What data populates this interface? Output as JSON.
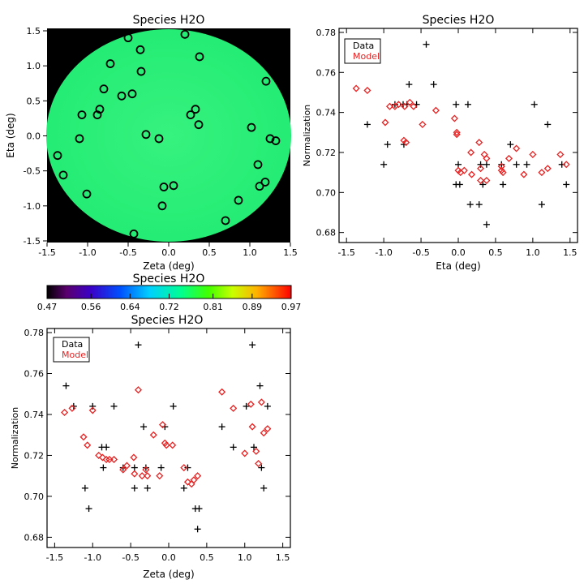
{
  "chart_data": [
    {
      "type": "scatter",
      "title": "Species H2O",
      "xlabel": "Zeta (deg)",
      "ylabel": "Eta (deg)",
      "xlim": [
        -1.5,
        1.5
      ],
      "ylim": [
        -1.5,
        1.5
      ],
      "xticks": [
        "-1.5",
        "-1.0",
        "-0.5",
        "0.0",
        "0.5",
        "1.0",
        "1.5"
      ],
      "yticks": [
        "-1.5",
        "-1.0",
        "-0.5",
        "0.0",
        "0.5",
        "1.0",
        "1.5"
      ],
      "background_color": "#000000",
      "field_color": "#2cf07a",
      "field_value": 0.73,
      "marker": "circle",
      "points": [
        [
          -0.5,
          1.4
        ],
        [
          0.2,
          1.45
        ],
        [
          -0.35,
          1.23
        ],
        [
          0.38,
          1.13
        ],
        [
          -0.72,
          1.03
        ],
        [
          -0.34,
          0.92
        ],
        [
          1.2,
          0.78
        ],
        [
          -0.8,
          0.67
        ],
        [
          -0.58,
          0.57
        ],
        [
          -0.45,
          0.6
        ],
        [
          -0.85,
          0.38
        ],
        [
          0.33,
          0.38
        ],
        [
          -1.07,
          0.3
        ],
        [
          -0.88,
          0.3
        ],
        [
          0.27,
          0.3
        ],
        [
          0.37,
          0.16
        ],
        [
          1.02,
          0.12
        ],
        [
          -0.28,
          0.02
        ],
        [
          -0.12,
          -0.04
        ],
        [
          -1.1,
          -0.04
        ],
        [
          1.25,
          -0.04
        ],
        [
          1.32,
          -0.07
        ],
        [
          -1.37,
          -0.28
        ],
        [
          1.1,
          -0.41
        ],
        [
          -1.3,
          -0.56
        ],
        [
          -0.06,
          -0.73
        ],
        [
          0.06,
          -0.71
        ],
        [
          1.19,
          -0.66
        ],
        [
          1.12,
          -0.72
        ],
        [
          -1.01,
          -0.83
        ],
        [
          0.86,
          -0.92
        ],
        [
          -0.08,
          -1.0
        ],
        [
          0.7,
          -1.21
        ],
        [
          -0.43,
          -1.4
        ]
      ]
    },
    {
      "type": "scatter",
      "title": "Species H2O",
      "xlabel": "Eta (deg)",
      "ylabel": "Normalization",
      "xlim": [
        -1.6,
        1.6
      ],
      "ylim": [
        0.675,
        0.782
      ],
      "xticks": [
        "-1.5",
        "-1.0",
        "-0.5",
        "0.0",
        "0.5",
        "1.0",
        "1.5"
      ],
      "yticks": [
        "0.68",
        "0.70",
        "0.72",
        "0.74",
        "0.76",
        "0.78"
      ],
      "legend": [
        "Data",
        "Model"
      ],
      "legend_position": "top-left",
      "series": [
        {
          "name": "Data",
          "color": "#000000",
          "marker": "plus",
          "points": [
            [
              -1.39,
              0.774
            ],
            [
              -1.22,
              0.734
            ],
            [
              -1.0,
              0.714
            ],
            [
              -0.95,
              0.724
            ],
            [
              -0.85,
              0.744
            ],
            [
              -0.73,
              0.724
            ],
            [
              -0.74,
              0.744
            ],
            [
              -0.69,
              0.744
            ],
            [
              -0.66,
              0.754
            ],
            [
              -0.56,
              0.744
            ],
            [
              -0.43,
              0.774
            ],
            [
              -0.33,
              0.754
            ],
            [
              -0.03,
              0.744
            ],
            [
              -0.03,
              0.704
            ],
            [
              0.0,
              0.714
            ],
            [
              0.02,
              0.704
            ],
            [
              0.13,
              0.744
            ],
            [
              0.16,
              0.694
            ],
            [
              0.28,
              0.694
            ],
            [
              0.3,
              0.714
            ],
            [
              0.33,
              0.704
            ],
            [
              0.38,
              0.714
            ],
            [
              0.38,
              0.684
            ],
            [
              0.58,
              0.714
            ],
            [
              0.6,
              0.704
            ],
            [
              0.7,
              0.724
            ],
            [
              0.78,
              0.714
            ],
            [
              0.92,
              0.714
            ],
            [
              1.02,
              0.744
            ],
            [
              1.12,
              0.694
            ],
            [
              1.2,
              0.734
            ],
            [
              1.39,
              0.714
            ],
            [
              1.45,
              0.704
            ]
          ]
        },
        {
          "name": "Model",
          "color": "#e82020",
          "marker": "diamond",
          "points": [
            [
              -1.37,
              0.752
            ],
            [
              -1.22,
              0.751
            ],
            [
              -0.98,
              0.735
            ],
            [
              -0.92,
              0.743
            ],
            [
              -0.85,
              0.743
            ],
            [
              -0.8,
              0.744
            ],
            [
              -0.72,
              0.743
            ],
            [
              -0.73,
              0.726
            ],
            [
              -0.7,
              0.725
            ],
            [
              -0.65,
              0.745
            ],
            [
              -0.6,
              0.743
            ],
            [
              -0.48,
              0.734
            ],
            [
              -0.3,
              0.741
            ],
            [
              -0.05,
              0.737
            ],
            [
              -0.02,
              0.73
            ],
            [
              -0.02,
              0.729
            ],
            [
              0.0,
              0.711
            ],
            [
              0.03,
              0.71
            ],
            [
              0.08,
              0.711
            ],
            [
              0.17,
              0.72
            ],
            [
              0.18,
              0.709
            ],
            [
              0.28,
              0.725
            ],
            [
              0.3,
              0.712
            ],
            [
              0.3,
              0.706
            ],
            [
              0.35,
              0.719
            ],
            [
              0.38,
              0.717
            ],
            [
              0.38,
              0.706
            ],
            [
              0.58,
              0.713
            ],
            [
              0.58,
              0.711
            ],
            [
              0.6,
              0.71
            ],
            [
              0.68,
              0.717
            ],
            [
              0.78,
              0.722
            ],
            [
              0.88,
              0.709
            ],
            [
              1.0,
              0.719
            ],
            [
              1.12,
              0.71
            ],
            [
              1.2,
              0.712
            ],
            [
              1.37,
              0.719
            ],
            [
              1.45,
              0.714
            ]
          ]
        }
      ]
    },
    {
      "type": "colorbar",
      "title": "Species H2O",
      "min": 0.47,
      "max": 0.97,
      "tick_labels": [
        "0.47",
        "0.56",
        "0.64",
        "0.72",
        "0.81",
        "0.89",
        "0.97"
      ],
      "colormap": "rainbow"
    },
    {
      "type": "scatter",
      "title": "Species H2O",
      "xlabel": "Zeta (deg)",
      "ylabel": "Normalization",
      "xlim": [
        -1.6,
        1.6
      ],
      "ylim": [
        0.675,
        0.782
      ],
      "xticks": [
        "-1.5",
        "-1.0",
        "-0.5",
        "0.0",
        "0.5",
        "1.0",
        "1.5"
      ],
      "yticks": [
        "0.68",
        "0.70",
        "0.72",
        "0.74",
        "0.76",
        "0.78"
      ],
      "legend": [
        "Data",
        "Model"
      ],
      "legend_position": "top-left",
      "series": [
        {
          "name": "Data",
          "color": "#000000",
          "marker": "plus",
          "points": [
            [
              -1.35,
              0.754
            ],
            [
              -1.25,
              0.744
            ],
            [
              -1.1,
              0.704
            ],
            [
              -1.05,
              0.694
            ],
            [
              -1.0,
              0.744
            ],
            [
              -0.88,
              0.724
            ],
            [
              -0.86,
              0.714
            ],
            [
              -0.82,
              0.724
            ],
            [
              -0.72,
              0.744
            ],
            [
              -0.6,
              0.714
            ],
            [
              -0.45,
              0.714
            ],
            [
              -0.45,
              0.704
            ],
            [
              -0.4,
              0.774
            ],
            [
              -0.33,
              0.734
            ],
            [
              -0.3,
              0.714
            ],
            [
              -0.28,
              0.704
            ],
            [
              -0.1,
              0.714
            ],
            [
              -0.05,
              0.734
            ],
            [
              0.06,
              0.744
            ],
            [
              0.2,
              0.704
            ],
            [
              0.25,
              0.714
            ],
            [
              0.35,
              0.694
            ],
            [
              0.38,
              0.684
            ],
            [
              0.4,
              0.694
            ],
            [
              0.7,
              0.734
            ],
            [
              0.85,
              0.724
            ],
            [
              1.02,
              0.744
            ],
            [
              1.1,
              0.774
            ],
            [
              1.12,
              0.724
            ],
            [
              1.2,
              0.754
            ],
            [
              1.22,
              0.714
            ],
            [
              1.25,
              0.704
            ],
            [
              1.3,
              0.744
            ]
          ]
        },
        {
          "name": "Model",
          "color": "#e82020",
          "marker": "diamond",
          "points": [
            [
              -1.37,
              0.741
            ],
            [
              -1.27,
              0.743
            ],
            [
              -1.12,
              0.729
            ],
            [
              -1.07,
              0.725
            ],
            [
              -1.0,
              0.742
            ],
            [
              -0.92,
              0.72
            ],
            [
              -0.87,
              0.719
            ],
            [
              -0.82,
              0.718
            ],
            [
              -0.78,
              0.718
            ],
            [
              -0.72,
              0.718
            ],
            [
              -0.6,
              0.713
            ],
            [
              -0.55,
              0.715
            ],
            [
              -0.46,
              0.719
            ],
            [
              -0.45,
              0.711
            ],
            [
              -0.4,
              0.752
            ],
            [
              -0.35,
              0.71
            ],
            [
              -0.3,
              0.713
            ],
            [
              -0.28,
              0.71
            ],
            [
              -0.2,
              0.73
            ],
            [
              -0.12,
              0.71
            ],
            [
              -0.08,
              0.735
            ],
            [
              -0.05,
              0.726
            ],
            [
              -0.03,
              0.725
            ],
            [
              0.05,
              0.725
            ],
            [
              0.2,
              0.714
            ],
            [
              0.25,
              0.707
            ],
            [
              0.3,
              0.706
            ],
            [
              0.33,
              0.708
            ],
            [
              0.38,
              0.71
            ],
            [
              0.7,
              0.751
            ],
            [
              0.85,
              0.743
            ],
            [
              1.0,
              0.721
            ],
            [
              1.08,
              0.745
            ],
            [
              1.1,
              0.734
            ],
            [
              1.15,
              0.722
            ],
            [
              1.18,
              0.716
            ],
            [
              1.22,
              0.746
            ],
            [
              1.25,
              0.731
            ],
            [
              1.3,
              0.733
            ]
          ]
        }
      ]
    }
  ]
}
